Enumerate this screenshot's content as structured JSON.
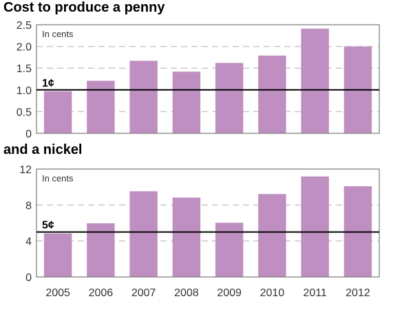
{
  "colors": {
    "bar": "#bf8fc1",
    "grid": "#c8c8c8",
    "frame": "#777777",
    "ref_line": "#000000"
  },
  "chart_data": [
    {
      "type": "bar",
      "title": "Cost to produce a penny",
      "unit_label": "In cents",
      "categories": [
        "2005",
        "2006",
        "2007",
        "2008",
        "2009",
        "2010",
        "2011",
        "2012"
      ],
      "values": [
        0.97,
        1.21,
        1.67,
        1.42,
        1.62,
        1.79,
        2.41,
        2.0
      ],
      "ylim": [
        0,
        2.5
      ],
      "yticks": [
        "0",
        "0.5",
        "1.0",
        "1.5",
        "2.0",
        "2.5"
      ],
      "reference": {
        "value": 1.0,
        "label": "1¢"
      },
      "grid": true
    },
    {
      "type": "bar",
      "title": "and a nickel",
      "unit_label": "In cents",
      "categories": [
        "2005",
        "2006",
        "2007",
        "2008",
        "2009",
        "2010",
        "2011",
        "2012"
      ],
      "values": [
        4.84,
        5.97,
        9.53,
        8.83,
        6.03,
        9.22,
        11.18,
        10.09
      ],
      "ylim": [
        0,
        12
      ],
      "yticks": [
        "0",
        "4",
        "8",
        "12"
      ],
      "reference": {
        "value": 5,
        "label": "5¢"
      },
      "grid": true
    }
  ]
}
